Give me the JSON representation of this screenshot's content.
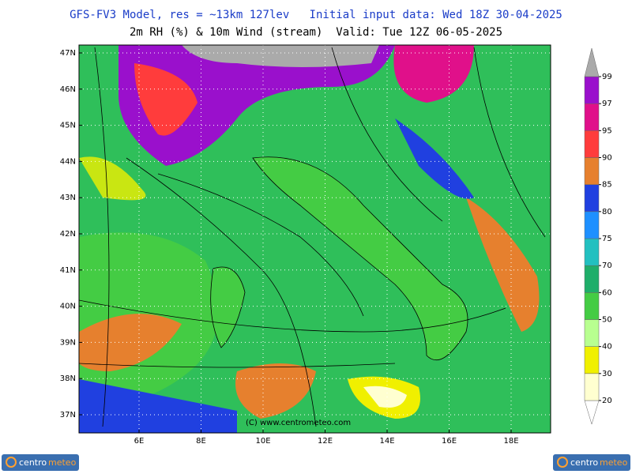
{
  "header": {
    "line1": "GFS-FV3 Model, res = ~13km 127lev   Initial input data: Wed 18Z 30-04-2025",
    "line2": "2m RH (%) & 10m Wind (stream)  Valid: Tue 12Z 06-05-2025"
  },
  "lat_labels": [
    "47N",
    "46N",
    "45N",
    "44N",
    "43N",
    "42N",
    "41N",
    "40N",
    "39N",
    "38N",
    "37N"
  ],
  "lon_labels": [
    "6E",
    "8E",
    "10E",
    "12E",
    "14E",
    "16E",
    "18E"
  ],
  "colorbar": {
    "levels": [
      20,
      30,
      40,
      50,
      60,
      70,
      75,
      80,
      85,
      90,
      95,
      97,
      99
    ],
    "colors": [
      "#ffffff",
      "#ffffd0",
      "#f0f000",
      "#b8ff90",
      "#44cc44",
      "#1fae6a",
      "#22c0c0",
      "#1e90ff",
      "#2040e0",
      "#e6802e",
      "#ff3c3c",
      "#e0108a",
      "#9a10cc",
      "#aaaaaa"
    ]
  },
  "watermark": "(C) www.centrometeo.com",
  "logo": [
    "centro",
    "meteo"
  ]
}
